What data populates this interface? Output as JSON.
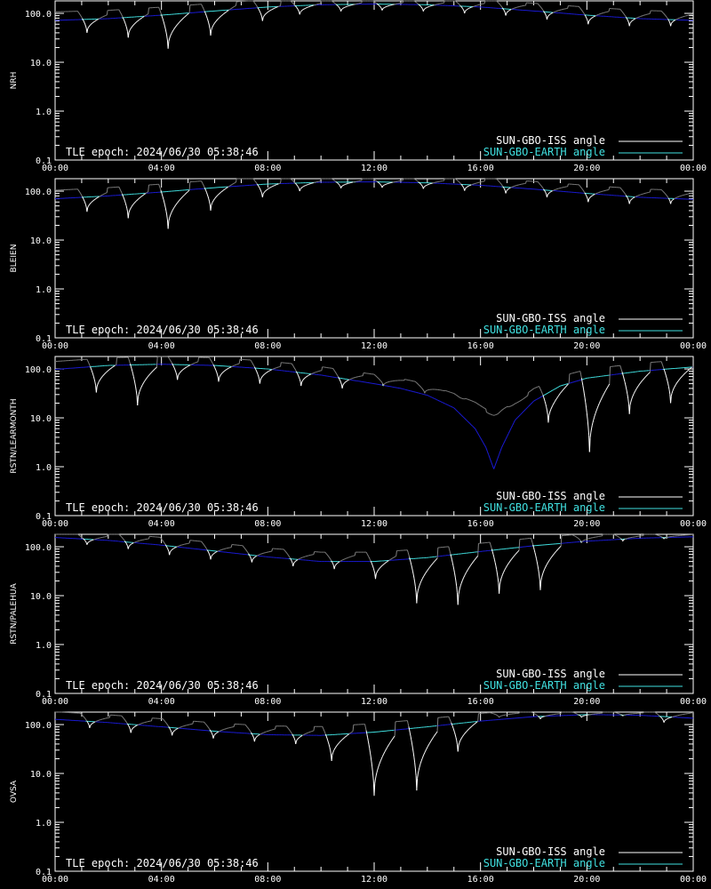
{
  "colors": {
    "background": "#000000",
    "axes": "#ffffff",
    "iss_bright": "#ffffff",
    "iss_dim": "#808080",
    "earth_above": "#40e0e0",
    "earth_below": "#1a1ad6"
  },
  "legend": {
    "iss_label": "SUN-GBO-ISS angle",
    "earth_label": "SUN-GBO-EARTH angle"
  },
  "tle_text": "TLE epoch: 2024/06/30 05:38:46",
  "x_ticks": [
    "00:00",
    "04:00",
    "08:00",
    "12:00",
    "16:00",
    "20:00",
    "00:00"
  ],
  "y_ticks": [
    "0.1",
    "1.0",
    "10.0",
    "100.0"
  ],
  "chart_data": [
    {
      "type": "line",
      "ylabel": "NRH",
      "x_unit": "hours UT",
      "xlim": [
        0,
        24
      ],
      "ylim": [
        0.1,
        180
      ],
      "y_scale": "log",
      "series": [
        {
          "name": "SUN-GBO-EARTH angle",
          "x": [
            0,
            2,
            4,
            6,
            8,
            10,
            12,
            14,
            16,
            18,
            20,
            22,
            24
          ],
          "y": [
            72,
            78,
            92,
            112,
            135,
            150,
            155,
            150,
            135,
            112,
            92,
            78,
            72
          ]
        },
        {
          "name": "SUN-GBO-ISS angle",
          "period_hours": 1.55,
          "minima": [
            {
              "t": 1.2,
              "v": 40
            },
            {
              "t": 2.75,
              "v": 32
            },
            {
              "t": 4.25,
              "v": 19
            },
            {
              "t": 5.85,
              "v": 35
            },
            {
              "t": 7.8,
              "v": 70
            },
            {
              "t": 9.2,
              "v": 95
            },
            {
              "t": 10.75,
              "v": 110
            },
            {
              "t": 12.3,
              "v": 115
            },
            {
              "t": 13.85,
              "v": 110
            },
            {
              "t": 15.4,
              "v": 100
            },
            {
              "t": 16.95,
              "v": 90
            },
            {
              "t": 18.5,
              "v": 75
            },
            {
              "t": 20.05,
              "v": 60
            },
            {
              "t": 21.6,
              "v": 55
            },
            {
              "t": 23.15,
              "v": 55
            }
          ]
        }
      ]
    },
    {
      "type": "line",
      "ylabel": "BLEIEN",
      "x_unit": "hours UT",
      "xlim": [
        0,
        24
      ],
      "ylim": [
        0.1,
        180
      ],
      "y_scale": "log",
      "series": [
        {
          "name": "SUN-GBO-EARTH angle",
          "x": [
            0,
            2,
            4,
            6,
            8,
            10,
            12,
            14,
            16,
            18,
            20,
            22,
            24
          ],
          "y": [
            70,
            80,
            96,
            118,
            140,
            152,
            155,
            148,
            132,
            110,
            90,
            75,
            68
          ]
        },
        {
          "name": "SUN-GBO-ISS angle",
          "period_hours": 1.55,
          "minima": [
            {
              "t": 1.2,
              "v": 38
            },
            {
              "t": 2.75,
              "v": 28
            },
            {
              "t": 4.25,
              "v": 17
            },
            {
              "t": 5.85,
              "v": 40
            },
            {
              "t": 7.8,
              "v": 75
            },
            {
              "t": 9.2,
              "v": 100
            },
            {
              "t": 10.75,
              "v": 115
            },
            {
              "t": 12.3,
              "v": 118
            },
            {
              "t": 13.85,
              "v": 112
            },
            {
              "t": 15.4,
              "v": 102
            },
            {
              "t": 16.95,
              "v": 90
            },
            {
              "t": 18.5,
              "v": 75
            },
            {
              "t": 20.05,
              "v": 60
            },
            {
              "t": 21.6,
              "v": 55
            },
            {
              "t": 23.15,
              "v": 55
            }
          ]
        }
      ]
    },
    {
      "type": "line",
      "ylabel": "RSTN/LEARMONTH",
      "x_unit": "hours UT",
      "xlim": [
        0,
        24
      ],
      "ylim": [
        0.1,
        180
      ],
      "y_scale": "log",
      "series": [
        {
          "name": "SUN-GBO-EARTH angle",
          "x": [
            0,
            2,
            4,
            6,
            8,
            10,
            12,
            13,
            14,
            15,
            15.8,
            16.2,
            16.5,
            16.8,
            17.3,
            18,
            19,
            20,
            22,
            24
          ],
          "y": [
            98,
            118,
            125,
            118,
            100,
            75,
            50,
            40,
            29,
            16,
            6,
            2.5,
            0.9,
            2.5,
            9,
            22,
            45,
            65,
            90,
            110
          ]
        },
        {
          "name": "SUN-GBO-ISS angle",
          "period_hours": 1.55,
          "minima": [
            {
              "t": 1.55,
              "v": 33
            },
            {
              "t": 3.1,
              "v": 18
            },
            {
              "t": 4.6,
              "v": 60
            },
            {
              "t": 6.15,
              "v": 55
            },
            {
              "t": 7.7,
              "v": 50
            },
            {
              "t": 9.25,
              "v": 45
            },
            {
              "t": 10.8,
              "v": 40
            },
            {
              "t": 12.35,
              "v": 45
            },
            {
              "t": 13.9,
              "v": 32
            },
            {
              "t": 15.45,
              "v": 25
            },
            {
              "t": 17.0,
              "v": 17
            },
            {
              "t": 18.55,
              "v": 8
            },
            {
              "t": 20.1,
              "v": 2
            },
            {
              "t": 21.6,
              "v": 12
            },
            {
              "t": 23.15,
              "v": 20
            }
          ]
        }
      ]
    },
    {
      "type": "line",
      "ylabel": "RSTN/PALEHUA",
      "x_unit": "hours UT",
      "xlim": [
        0,
        24
      ],
      "ylim": [
        0.1,
        180
      ],
      "y_scale": "log",
      "series": [
        {
          "name": "SUN-GBO-EARTH angle",
          "x": [
            0,
            2,
            4,
            6,
            8,
            10,
            12,
            14,
            16,
            18,
            20,
            22,
            24
          ],
          "y": [
            155,
            135,
            108,
            82,
            62,
            50,
            50,
            60,
            80,
            105,
            130,
            150,
            160
          ]
        },
        {
          "name": "SUN-GBO-ISS angle",
          "period_hours": 1.55,
          "minima": [
            {
              "t": 1.2,
              "v": 110
            },
            {
              "t": 2.75,
              "v": 90
            },
            {
              "t": 4.3,
              "v": 68
            },
            {
              "t": 5.85,
              "v": 55
            },
            {
              "t": 7.4,
              "v": 48
            },
            {
              "t": 8.95,
              "v": 40
            },
            {
              "t": 10.5,
              "v": 35
            },
            {
              "t": 12.05,
              "v": 22
            },
            {
              "t": 13.6,
              "v": 7
            },
            {
              "t": 15.15,
              "v": 6.5
            },
            {
              "t": 16.7,
              "v": 11
            },
            {
              "t": 18.25,
              "v": 13
            },
            {
              "t": 19.8,
              "v": 120
            },
            {
              "t": 21.35,
              "v": 130
            },
            {
              "t": 22.9,
              "v": 145
            }
          ]
        }
      ]
    },
    {
      "type": "line",
      "ylabel": "OVSA",
      "x_unit": "hours UT",
      "xlim": [
        0,
        24
      ],
      "ylim": [
        0.1,
        180
      ],
      "y_scale": "log",
      "series": [
        {
          "name": "SUN-GBO-EARTH angle",
          "x": [
            0,
            2,
            4,
            6,
            8,
            10,
            12,
            14,
            16,
            18,
            20,
            22,
            24
          ],
          "y": [
            128,
            110,
            90,
            73,
            62,
            60,
            70,
            90,
            118,
            145,
            160,
            155,
            135
          ]
        },
        {
          "name": "SUN-GBO-ISS angle",
          "period_hours": 1.55,
          "minima": [
            {
              "t": 1.3,
              "v": 85
            },
            {
              "t": 2.85,
              "v": 68
            },
            {
              "t": 4.4,
              "v": 60
            },
            {
              "t": 5.95,
              "v": 52
            },
            {
              "t": 7.5,
              "v": 45
            },
            {
              "t": 9.05,
              "v": 40
            },
            {
              "t": 10.4,
              "v": 18
            },
            {
              "t": 12.0,
              "v": 3.5
            },
            {
              "t": 13.6,
              "v": 4.5
            },
            {
              "t": 15.15,
              "v": 28
            },
            {
              "t": 16.7,
              "v": 140
            },
            {
              "t": 18.25,
              "v": 130
            },
            {
              "t": 19.8,
              "v": 140
            },
            {
              "t": 21.35,
              "v": 150
            },
            {
              "t": 22.9,
              "v": 110
            }
          ]
        }
      ]
    }
  ]
}
